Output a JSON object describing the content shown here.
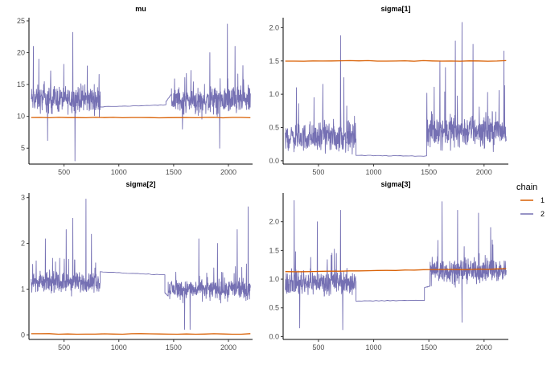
{
  "chart_data": {
    "type": "line",
    "colors": {
      "chain_1": "#d95f02",
      "chain_2": "#7570b3"
    },
    "legend": {
      "title": "chain",
      "placement": "right",
      "entries": [
        "1",
        "2"
      ]
    },
    "grid": false,
    "panels": [
      {
        "title": "mu",
        "xlim": [
          180,
          2220
        ],
        "ylim": [
          2.5,
          25.5
        ],
        "xticks": [
          500,
          1000,
          1500,
          2000
        ],
        "yticks": [
          5,
          10,
          15,
          20,
          25
        ],
        "series": [
          {
            "chain": "1",
            "segments": [
              {
                "type": "flat",
                "x": [
                  200,
                  2200
                ],
                "y": [
                  9.8,
                  9.8
                ]
              }
            ]
          },
          {
            "chain": "2",
            "segments": [
              {
                "type": "noisy",
                "x": [
                  200,
                  830
                ],
                "base": 12.7,
                "spread": 3.0,
                "min": 3.0,
                "max": 23.2,
                "spikes": [
                  [
                    580,
                    23.2
                  ],
                  [
                    220,
                    21.0
                  ],
                  [
                    270,
                    19.0
                  ],
                  [
                    600,
                    3.0
                  ],
                  [
                    350,
                    6.2
                  ]
                ]
              },
              {
                "type": "flat",
                "x": [
                  830,
                  1430
                ],
                "y": [
                  11.5,
                  11.8
                ]
              },
              {
                "type": "flat",
                "x": [
                  1430,
                  1480
                ],
                "y": [
                  12.3,
                  13.5
                ]
              },
              {
                "type": "noisy",
                "x": [
                  1480,
                  2200
                ],
                "base": 12.5,
                "spread": 3.0,
                "min": 5.0,
                "max": 24.5,
                "spikes": [
                  [
                    1990,
                    24.5
                  ],
                  [
                    1830,
                    20.0
                  ],
                  [
                    2060,
                    21.0
                  ],
                  [
                    1920,
                    5.0
                  ],
                  [
                    1580,
                    8.0
                  ]
                ]
              }
            ]
          }
        ]
      },
      {
        "title": "sigma[1]",
        "xlim": [
          180,
          2220
        ],
        "ylim": [
          -0.05,
          2.15
        ],
        "xticks": [
          500,
          1000,
          1500,
          2000
        ],
        "yticks": [
          0.0,
          0.5,
          1.0,
          1.5,
          2.0
        ],
        "series": [
          {
            "chain": "1",
            "segments": [
              {
                "type": "flat",
                "x": [
                  200,
                  2200
                ],
                "y": [
                  1.5,
                  1.5
                ]
              }
            ]
          },
          {
            "chain": "2",
            "segments": [
              {
                "type": "noisy",
                "x": [
                  200,
                  840
                ],
                "base": 0.35,
                "spread": 0.3,
                "min": 0.1,
                "max": 1.88,
                "spikes": [
                  [
                    700,
                    1.88
                  ],
                  [
                    730,
                    1.25
                  ],
                  [
                    540,
                    1.15
                  ],
                  [
                    300,
                    1.1
                  ],
                  [
                    460,
                    0.95
                  ]
                ]
              },
              {
                "type": "flat",
                "x": [
                  840,
                  1480
                ],
                "y": [
                  0.08,
                  0.07
                ]
              },
              {
                "type": "noisy",
                "x": [
                  1480,
                  2200
                ],
                "base": 0.45,
                "spread": 0.35,
                "min": 0.1,
                "max": 2.08,
                "spikes": [
                  [
                    1800,
                    2.08
                  ],
                  [
                    1740,
                    1.8
                  ],
                  [
                    1900,
                    1.75
                  ],
                  [
                    2180,
                    1.65
                  ],
                  [
                    1600,
                    1.5
                  ],
                  [
                    1650,
                    1.4
                  ]
                ]
              }
            ]
          }
        ]
      },
      {
        "title": "sigma[2]",
        "xlim": [
          180,
          2220
        ],
        "ylim": [
          -0.1,
          3.1
        ],
        "xticks": [
          500,
          1000,
          1500,
          2000
        ],
        "yticks": [
          0,
          1,
          2,
          3
        ],
        "series": [
          {
            "chain": "1",
            "segments": [
              {
                "type": "flat",
                "x": [
                  200,
                  2200
                ],
                "y": [
                  0.02,
                  0.02
                ]
              }
            ]
          },
          {
            "chain": "2",
            "segments": [
              {
                "type": "noisy",
                "x": [
                  200,
                  830
                ],
                "base": 1.15,
                "spread": 0.3,
                "min": 0.35,
                "max": 2.97,
                "spikes": [
                  [
                    700,
                    2.97
                  ],
                  [
                    580,
                    2.55
                  ],
                  [
                    520,
                    2.3
                  ],
                  [
                    330,
                    2.1
                  ],
                  [
                    750,
                    2.2
                  ]
                ]
              },
              {
                "type": "flat",
                "x": [
                  830,
                  1420
                ],
                "y": [
                  1.38,
                  1.31
                ]
              },
              {
                "type": "flat",
                "x": [
                  1420,
                  1450
                ],
                "y": [
                  0.92,
                  0.85
                ]
              },
              {
                "type": "noisy",
                "x": [
                  1450,
                  2200
                ],
                "base": 1.0,
                "spread": 0.3,
                "min": 0.1,
                "max": 2.8,
                "spikes": [
                  [
                    2180,
                    2.8
                  ],
                  [
                    2080,
                    2.3
                  ],
                  [
                    1600,
                    0.12
                  ],
                  [
                    1730,
                    2.1
                  ],
                  [
                    1900,
                    2.0
                  ],
                  [
                    1650,
                    0.12
                  ]
                ]
              }
            ]
          }
        ]
      },
      {
        "title": "sigma[3]",
        "xlim": [
          180,
          2220
        ],
        "ylim": [
          -0.05,
          2.5
        ],
        "xticks": [
          500,
          1000,
          1500,
          2000
        ],
        "yticks": [
          0.0,
          0.5,
          1.0,
          1.5,
          2.0
        ],
        "series": [
          {
            "chain": "1",
            "segments": [
              {
                "type": "flat",
                "x": [
                  200,
                  2200
                ],
                "y": [
                  1.13,
                  1.18
                ]
              }
            ]
          },
          {
            "chain": "2",
            "segments": [
              {
                "type": "noisy",
                "x": [
                  200,
                  840
                ],
                "base": 0.95,
                "spread": 0.3,
                "min": 0.1,
                "max": 2.37,
                "spikes": [
                  [
                    280,
                    2.37
                  ],
                  [
                    700,
                    2.2
                  ],
                  [
                    490,
                    2.0
                  ],
                  [
                    330,
                    0.15
                  ],
                  [
                    720,
                    0.12
                  ]
                ]
              },
              {
                "type": "flat",
                "x": [
                  840,
                  1460
                ],
                "y": [
                  0.62,
                  0.63
                ]
              },
              {
                "type": "flat",
                "x": [
                  1460,
                  1510
                ],
                "y": [
                  0.85,
                  0.88
                ]
              },
              {
                "type": "noisy",
                "x": [
                  1510,
                  2200
                ],
                "base": 1.15,
                "spread": 0.3,
                "min": 0.2,
                "max": 2.35,
                "spikes": [
                  [
                    1620,
                    2.35
                  ],
                  [
                    1760,
                    2.2
                  ],
                  [
                    1950,
                    2.15
                  ],
                  [
                    2060,
                    1.9
                  ],
                  [
                    1800,
                    0.25
                  ]
                ]
              }
            ]
          }
        ]
      }
    ]
  }
}
